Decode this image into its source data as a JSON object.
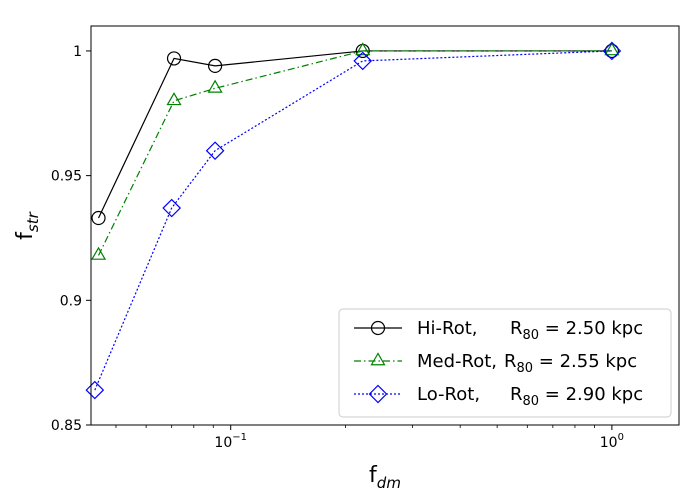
{
  "chart_data": {
    "type": "line",
    "xscale": "log",
    "xlim": [
      0.043,
      1.5
    ],
    "ylim": [
      0.85,
      1.01
    ],
    "grid": false,
    "legend_position": "lower-right",
    "xlabel": {
      "main": "f",
      "sub": "dm"
    },
    "ylabel": {
      "main": "f",
      "sub": "str"
    },
    "x_ticks": [
      {
        "value": 0.1,
        "base": "10",
        "exp": "−1"
      },
      {
        "value": 1,
        "base": "10",
        "exp": "0"
      }
    ],
    "y_ticks": [
      {
        "value": 0.85,
        "label": "0.85"
      },
      {
        "value": 0.9,
        "label": "0.9"
      },
      {
        "value": 0.95,
        "label": "0.95"
      },
      {
        "value": 1.0,
        "label": "1"
      }
    ],
    "series": [
      {
        "name": "Hi-Rot",
        "legend": {
          "name": "Hi-Rot,",
          "r_prefix": "R",
          "r_sub": "80",
          "r_value": "= 2.50 kpc"
        },
        "color": "#000000",
        "linestyle": "solid",
        "marker": "circle",
        "x": [
          0.045,
          0.071,
          0.091,
          0.222,
          1.0
        ],
        "y": [
          0.933,
          0.997,
          0.994,
          1.0,
          1.0
        ]
      },
      {
        "name": "Med-Rot",
        "legend": {
          "name": "Med-Rot,",
          "r_prefix": "R",
          "r_sub": "80",
          "r_value": "= 2.55 kpc"
        },
        "color": "#008000",
        "linestyle": "dashdot",
        "marker": "triangle",
        "x": [
          0.045,
          0.071,
          0.091,
          0.222,
          1.0
        ],
        "y": [
          0.918,
          0.98,
          0.985,
          1.0,
          1.0
        ]
      },
      {
        "name": "Lo-Rot",
        "legend": {
          "name": "Lo-Rot,",
          "r_prefix": "R",
          "r_sub": "80",
          "r_value": "= 2.90 kpc"
        },
        "color": "#0000ff",
        "linestyle": "dotted",
        "marker": "diamond",
        "x": [
          0.044,
          0.07,
          0.091,
          0.222,
          1.0
        ],
        "y": [
          0.864,
          0.937,
          0.96,
          0.996,
          1.0
        ]
      }
    ]
  }
}
